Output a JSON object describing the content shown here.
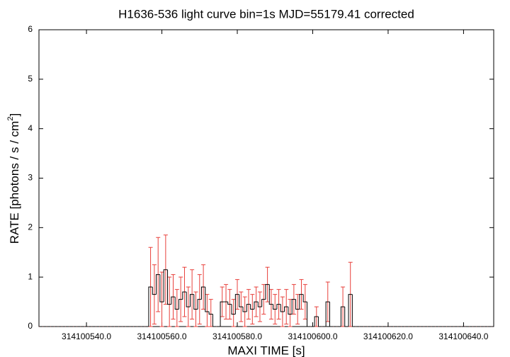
{
  "chart_data": {
    "type": "errorbar-step",
    "title": "H1636-536 light curve bin=1s MJD=55179.41 corrected",
    "x_label": "MAXI TIME [s]",
    "y_label": [
      "RATE [photons / s / cm",
      "2",
      "]"
    ],
    "xlim": [
      314100527.4,
      314100648
    ],
    "ylim": [
      0,
      6
    ],
    "xticks": [
      {
        "value": 314100540,
        "label": "314100540.0"
      },
      {
        "value": 314100560,
        "label": "314100560.0"
      },
      {
        "value": 314100580,
        "label": "314100580.0"
      },
      {
        "value": 314100600,
        "label": "314100600.0"
      },
      {
        "value": 314100620,
        "label": "314100620.0"
      },
      {
        "value": 314100640,
        "label": "314100640.0"
      }
    ],
    "yticks": [
      0,
      1,
      2,
      3,
      4,
      5,
      6
    ],
    "grid": false,
    "bin_width": 1,
    "line_color": "#000000",
    "error_color": "#e8413c",
    "x": [
      314100528,
      314100529,
      314100530,
      314100531,
      314100532,
      314100533,
      314100534,
      314100535,
      314100536,
      314100537,
      314100538,
      314100539,
      314100540,
      314100541,
      314100542,
      314100543,
      314100544,
      314100545,
      314100546,
      314100547,
      314100548,
      314100549,
      314100550,
      314100551,
      314100552,
      314100553,
      314100554,
      314100555,
      314100556,
      314100557,
      314100558,
      314100559,
      314100560,
      314100561,
      314100562,
      314100563,
      314100564,
      314100565,
      314100566,
      314100567,
      314100568,
      314100569,
      314100570,
      314100571,
      314100572,
      314100573,
      314100574,
      314100575,
      314100576,
      314100577,
      314100578,
      314100579,
      314100580,
      314100581,
      314100582,
      314100583,
      314100584,
      314100585,
      314100586,
      314100587,
      314100588,
      314100589,
      314100590,
      314100591,
      314100592,
      314100593,
      314100594,
      314100595,
      314100596,
      314100597,
      314100598,
      314100599,
      314100600,
      314100601,
      314100602,
      314100603,
      314100604,
      314100605,
      314100606,
      314100607,
      314100608,
      314100609,
      314100610,
      314100611,
      314100612,
      314100613,
      314100614,
      314100615,
      314100616,
      314100617,
      314100618,
      314100619,
      314100620,
      314100621,
      314100622,
      314100623,
      314100624,
      314100625,
      314100626,
      314100627,
      314100628,
      314100629,
      314100630,
      314100631,
      314100632,
      314100633,
      314100634,
      314100635,
      314100636,
      314100637,
      314100638,
      314100639,
      314100640,
      314100641,
      314100642,
      314100643,
      314100644,
      314100645,
      314100646,
      314100647
    ],
    "values": [
      0,
      0,
      0,
      0,
      0,
      0,
      0,
      0,
      0,
      0,
      0,
      0,
      0,
      0,
      0,
      0,
      0,
      0,
      0,
      0,
      0,
      0,
      0,
      0,
      0,
      0,
      0,
      0,
      0,
      0.8,
      0.65,
      1.05,
      0.5,
      1.15,
      0.45,
      0.6,
      0.35,
      0.55,
      0.7,
      0.4,
      0.65,
      0.35,
      0.55,
      0.8,
      0.3,
      0.25,
      0,
      0,
      0.5,
      0.5,
      0.45,
      0.25,
      0.65,
      0.4,
      0.3,
      0.45,
      0.35,
      0.5,
      0.4,
      0.55,
      0.85,
      0.45,
      0.35,
      0.45,
      0.3,
      0.4,
      0.25,
      0.55,
      0.35,
      0.65,
      0.5,
      0,
      0,
      0.2,
      0,
      0,
      0.5,
      0,
      0,
      0,
      0.4,
      0,
      0.65,
      0,
      0,
      0,
      0,
      0,
      0,
      0,
      0,
      0,
      0,
      0,
      0,
      0,
      0,
      0,
      0,
      0,
      0,
      0,
      0,
      0,
      0,
      0,
      0,
      0,
      0,
      0,
      0,
      0,
      0,
      0,
      0,
      0,
      0,
      0,
      0,
      0
    ],
    "errors": [
      0,
      0,
      0,
      0,
      0,
      0,
      0,
      0,
      0,
      0,
      0,
      0,
      0,
      0,
      0,
      0,
      0,
      0,
      0,
      0,
      0,
      0,
      0,
      0,
      0,
      0,
      0,
      0,
      0,
      0.8,
      0.6,
      0.75,
      0.6,
      0.7,
      0.55,
      0.45,
      0.4,
      0.45,
      0.5,
      0.4,
      0.5,
      0.35,
      0.5,
      0.45,
      0.35,
      0.3,
      0,
      0,
      0.3,
      0.35,
      0.3,
      0.3,
      0.3,
      0.3,
      0.3,
      0.3,
      0.3,
      0.3,
      0.3,
      0.3,
      0.35,
      0.3,
      0.3,
      0.3,
      0.3,
      0.35,
      0.3,
      0.3,
      0.3,
      0.3,
      0.35,
      0,
      0,
      0.2,
      0,
      0,
      0.4,
      0,
      0,
      0,
      0.4,
      0,
      0.65,
      0,
      0,
      0,
      0,
      0,
      0,
      0,
      0,
      0,
      0,
      0,
      0,
      0,
      0,
      0,
      0,
      0,
      0,
      0,
      0,
      0,
      0,
      0,
      0,
      0,
      0,
      0,
      0,
      0,
      0,
      0,
      0,
      0,
      0,
      0,
      0,
      0
    ]
  }
}
